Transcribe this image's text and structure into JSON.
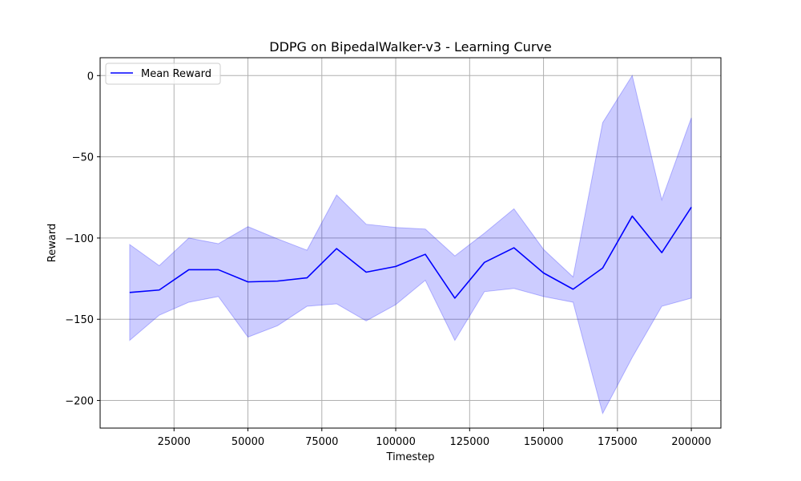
{
  "chart_data": {
    "type": "line",
    "title": "DDPG on BipedalWalker-v3 - Learning Curve",
    "xlabel": "Timestep",
    "ylabel": "Reward",
    "xlim": [
      0,
      210000
    ],
    "ylim": [
      -217,
      11
    ],
    "grid": true,
    "legend_placement": "top-left",
    "x_ticks": [
      25000,
      50000,
      75000,
      100000,
      125000,
      150000,
      175000,
      200000
    ],
    "y_ticks": [
      0,
      -50,
      -100,
      -150,
      -200
    ],
    "x": [
      10000,
      20000,
      30000,
      40000,
      50000,
      60000,
      70000,
      80000,
      90000,
      100000,
      110000,
      120000,
      130000,
      140000,
      150000,
      160000,
      170000,
      180000,
      190000,
      200000
    ],
    "series": [
      {
        "name": "Mean Reward",
        "color": "#0000ff",
        "values": [
          -133.5,
          -132,
          -119.5,
          -119.5,
          -127,
          -126.5,
          -124.5,
          -106.5,
          -121,
          -117.5,
          -110,
          -137,
          -115,
          -106,
          -121.5,
          -131.5,
          -118.5,
          -86.5,
          -109,
          -81
        ]
      }
    ],
    "band": {
      "color": "#0000ff",
      "upper": [
        -104,
        -117,
        -100,
        -103.5,
        -93,
        -100.5,
        -107.5,
        -73.5,
        -91.5,
        -93.5,
        -94.5,
        -111,
        -97,
        -82,
        -107,
        -124,
        -29,
        0,
        -76.5,
        -26
      ],
      "lower": [
        -163,
        -147.5,
        -139.5,
        -136,
        -161,
        -154,
        -142,
        -140.5,
        -151,
        -141,
        -126,
        -163,
        -133,
        -131,
        -136,
        -139.5,
        -208,
        -173.5,
        -142,
        -137
      ]
    }
  }
}
